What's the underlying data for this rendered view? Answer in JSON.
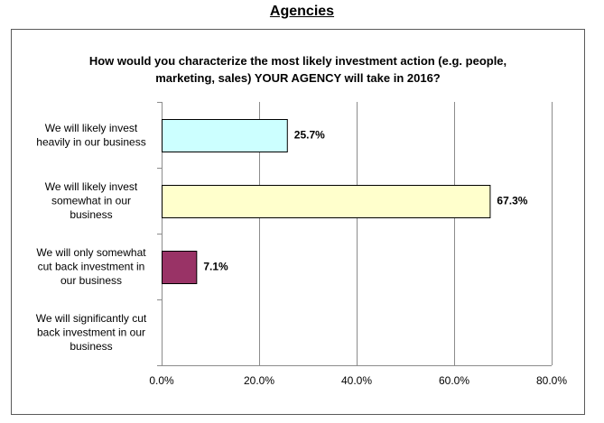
{
  "header": {
    "title": "Agencies"
  },
  "chart_data": {
    "type": "bar",
    "orientation": "horizontal",
    "title_lines": [
      "How would you characterize the most likely investment action (e.g. people,",
      "marketing, sales) YOUR AGENCY will take in 2016?"
    ],
    "categories": [
      [
        "We will likely invest",
        "heavily in our business"
      ],
      [
        "We will likely invest",
        "somewhat in our",
        "business"
      ],
      [
        "We will only somewhat",
        "cut back investment in",
        "our business"
      ],
      [
        "We will significantly cut",
        "back investment in our",
        "business"
      ]
    ],
    "values": [
      25.7,
      67.3,
      7.1,
      0
    ],
    "value_labels": [
      "25.7%",
      "67.3%",
      "7.1%",
      ""
    ],
    "colors": [
      "#ccffff",
      "#ffffcc",
      "#993366",
      "#cccccc"
    ],
    "xlim": [
      0,
      80
    ],
    "xticks": [
      0,
      20,
      40,
      60,
      80
    ],
    "xtick_labels": [
      "0.0%",
      "20.0%",
      "40.0%",
      "60.0%",
      "80.0%"
    ],
    "grid": true,
    "legend": "none"
  }
}
